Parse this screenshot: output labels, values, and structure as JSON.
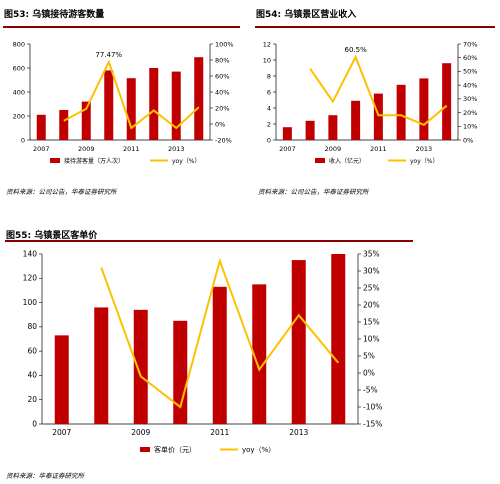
{
  "panels": [
    {
      "title": "图53:   乌镇接待游客数量",
      "source": "资料来源：公司公告，华泰证券研究所"
    },
    {
      "title": "图54:   乌镇景区营业收入",
      "source": "资料来源：公司公告，华泰证券研究所"
    },
    {
      "title": "图55:   乌镇景区客单价",
      "source": "资料来源：华泰证券研究所"
    }
  ],
  "colors": {
    "bar": "#c00000",
    "line": "#ffc000",
    "rule": "#8b0000"
  },
  "chart_data": [
    {
      "type": "bar",
      "title": "乌镇接待游客数量",
      "x_tick_labels": [
        "2007",
        "2009",
        "2011",
        "2013"
      ],
      "series": [
        {
          "name": "接待游客量（万人次）",
          "type": "bar",
          "axis": "left",
          "values": [
            210,
            250,
            320,
            580,
            515,
            600,
            570,
            690
          ]
        },
        {
          "name": "yoy（%）",
          "type": "line",
          "axis": "right",
          "values": [
            null,
            4,
            19,
            77.47,
            -5,
            17,
            -5,
            21
          ]
        }
      ],
      "y_left": {
        "min": 0,
        "max": 800,
        "ticks": [
          0,
          200,
          400,
          600,
          800
        ]
      },
      "y_right": {
        "min": -20,
        "max": 100,
        "ticks": [
          "-20%",
          "0%",
          "20%",
          "40%",
          "60%",
          "80%",
          "100%"
        ]
      },
      "annotations": [
        {
          "text": "77.47%",
          "index": 3
        }
      ],
      "legend": "bottom"
    },
    {
      "type": "bar",
      "title": "乌镇景区营业收入",
      "x_tick_labels": [
        "2007",
        "2009",
        "2011",
        "2013"
      ],
      "series": [
        {
          "name": "收入（亿元）",
          "type": "bar",
          "axis": "left",
          "values": [
            1.6,
            2.4,
            3.1,
            4.9,
            5.8,
            6.9,
            7.7,
            9.6
          ]
        },
        {
          "name": "yoy（%）",
          "type": "line",
          "axis": "right",
          "values": [
            null,
            52,
            28,
            60.5,
            18,
            18,
            11,
            25
          ]
        }
      ],
      "y_left": {
        "min": 0,
        "max": 12,
        "ticks": [
          0,
          2,
          4,
          6,
          8,
          10,
          12
        ]
      },
      "y_right": {
        "min": 0,
        "max": 70,
        "ticks": [
          "0%",
          "10%",
          "20%",
          "30%",
          "40%",
          "50%",
          "60%",
          "70%"
        ]
      },
      "annotations": [
        {
          "text": "60.5%",
          "index": 3
        }
      ],
      "legend": "bottom"
    },
    {
      "type": "bar",
      "title": "乌镇景区客单价",
      "x_tick_labels": [
        "2007",
        "2009",
        "2011",
        "2013"
      ],
      "series": [
        {
          "name": "客单价（元）",
          "type": "bar",
          "axis": "left",
          "values": [
            73,
            96,
            94,
            85,
            113,
            115,
            135,
            140
          ]
        },
        {
          "name": "yoy（%）",
          "type": "line",
          "axis": "right",
          "values": [
            null,
            31,
            -1,
            -10,
            33,
            1,
            17,
            3
          ]
        }
      ],
      "y_left": {
        "min": 0,
        "max": 140,
        "ticks": [
          0,
          20,
          40,
          60,
          80,
          100,
          120,
          140
        ]
      },
      "y_right": {
        "min": -15,
        "max": 35,
        "ticks": [
          "-15%",
          "-10%",
          "-5%",
          "0%",
          "5%",
          "10%",
          "15%",
          "20%",
          "25%",
          "30%",
          "35%"
        ]
      },
      "annotations": [],
      "legend": "bottom"
    }
  ]
}
